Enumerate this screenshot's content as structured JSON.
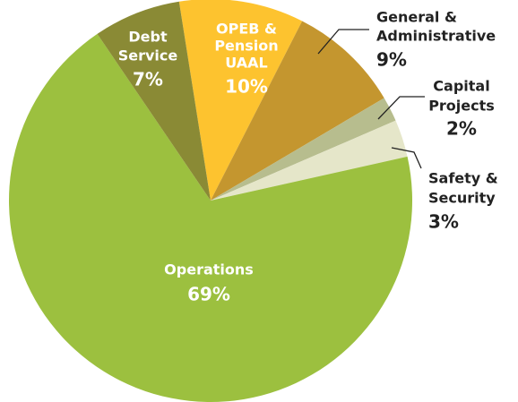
{
  "chart_data": {
    "type": "pie",
    "categories": [
      [
        "OPEB &",
        "Pension",
        "UAAL"
      ],
      [
        "General &",
        "Administrative"
      ],
      [
        "Capital",
        "Projects"
      ],
      [
        "Safety &",
        "Security"
      ],
      [
        "Operations"
      ],
      [
        "Debt",
        "Service"
      ]
    ],
    "values": [
      10,
      9,
      2,
      3,
      69,
      7
    ],
    "value_labels": [
      "10%",
      "9%",
      "2%",
      "3%",
      "69%",
      "7%"
    ],
    "colors": [
      "#fdc32f",
      "#c4962f",
      "#b7bd8e",
      "#e5e6c9",
      "#9cc03f",
      "#8a8a35"
    ]
  }
}
